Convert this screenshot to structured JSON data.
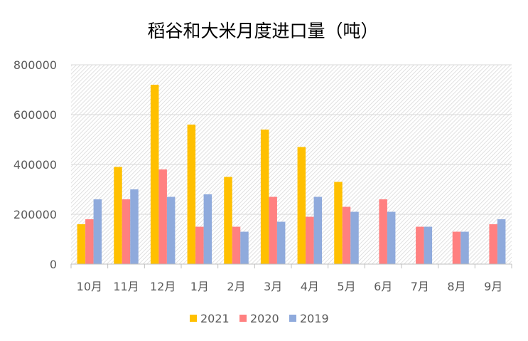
{
  "chart_data": {
    "type": "bar",
    "title": "稻谷和大米月度进口量（吨）",
    "xlabel": "",
    "ylabel": "",
    "categories": [
      "10月",
      "11月",
      "12月",
      "1月",
      "2月",
      "3月",
      "4月",
      "5月",
      "6月",
      "7月",
      "8月",
      "9月"
    ],
    "series": [
      {
        "name": "2021",
        "color": "#FFC000",
        "values": [
          160000,
          390000,
          720000,
          560000,
          350000,
          540000,
          470000,
          330000,
          null,
          null,
          null,
          null
        ]
      },
      {
        "name": "2020",
        "color": "#FF8080",
        "values": [
          180000,
          260000,
          380000,
          150000,
          150000,
          270000,
          190000,
          230000,
          260000,
          150000,
          130000,
          160000
        ]
      },
      {
        "name": "2019",
        "color": "#8FAADC",
        "values": [
          260000,
          300000,
          270000,
          280000,
          130000,
          170000,
          270000,
          210000,
          210000,
          150000,
          130000,
          180000
        ]
      }
    ],
    "ylim": [
      0,
      800000
    ],
    "yticks": [
      "0",
      "200000",
      "400000",
      "600000",
      "800000"
    ],
    "grid": true,
    "legend_position": "bottom"
  }
}
